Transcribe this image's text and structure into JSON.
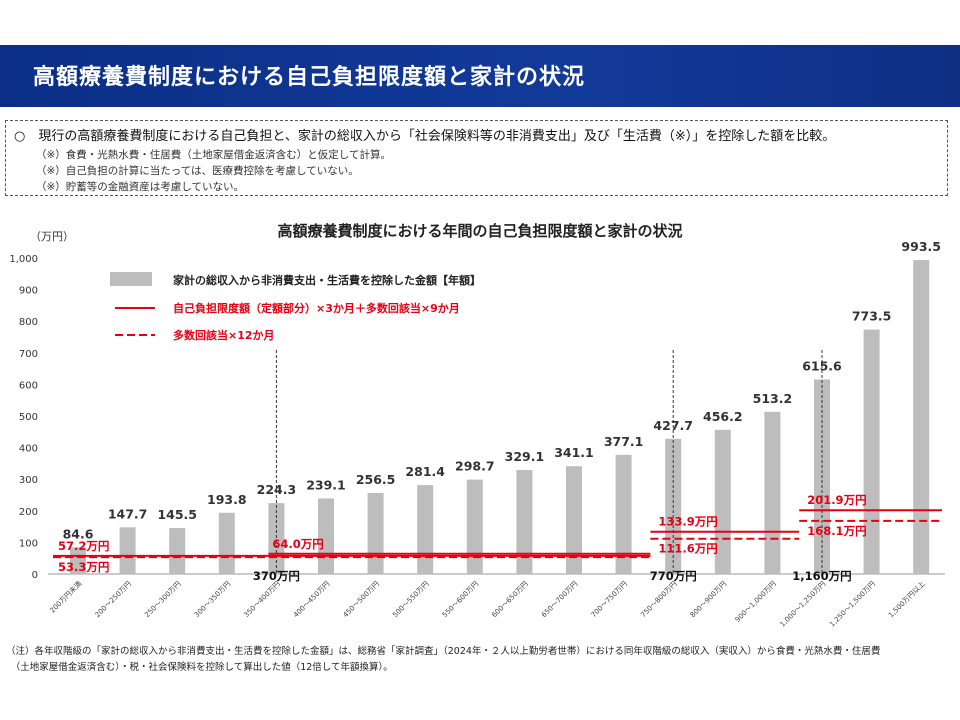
{
  "header": {
    "title": "高額療養費制度における自己負担限度額と家計の状況"
  },
  "note": {
    "main": "○　現行の高額療養費制度における自己負担と、家計の総収入から「社会保険料等の非消費支出」及び「生活費（※）」を控除した額を比較。",
    "sub": [
      "（※）食費・光熱水費・住居費（土地家屋借金返済含む）と仮定して計算。",
      "（※）自己負担の計算に当たっては、医療費控除を考慮していない。",
      "（※）貯蓄等の金融資産は考慮していない。"
    ]
  },
  "footnote": {
    "line1": "（注）各年収階級の「家計の総収入から非消費支出・生活費を控除した金額」は、総務省「家計調査」（2024年・２人以上勤労者世帯）における同年収階級の総収入（実収入）から食費・光熱水費・住居費",
    "line2": "　（土地家屋借金返済含む）・税・社会保険料を控除して算出した値（12倍して年額換算）。"
  },
  "colors": {
    "bar": "#bdbdbd",
    "red": "#e60012",
    "header_bg": "#0f3590",
    "text": "#222222"
  },
  "chart_data": {
    "type": "bar",
    "title": "高額療養費制度における年間の自己負担限度額と家計の状況",
    "ylabel": "（万円）",
    "ylim": [
      0,
      1000
    ],
    "yticks": [
      0,
      100,
      200,
      300,
      400,
      500,
      600,
      700,
      800,
      900,
      1000
    ],
    "ytick_labels": [
      "0",
      "100",
      "200",
      "300",
      "400",
      "500",
      "600",
      "700",
      "800",
      "900",
      "1,000"
    ],
    "categories": [
      "200万円未満",
      "200～250万円",
      "250～300万円",
      "300～350万円",
      "350～400万円",
      "400～450万円",
      "450～500万円",
      "500～550万円",
      "550～600万円",
      "600～650万円",
      "650～700万円",
      "700～750万円",
      "750～800万円",
      "800～900万円",
      "900～1,000万円",
      "1,000～1,250万円",
      "1,250～1,500万円",
      "1,500万円以上"
    ],
    "series": [
      {
        "name": "家計の総収入から非消費支出・生活費を控除した金額【年額】",
        "values": [
          84.6,
          147.7,
          145.5,
          193.8,
          224.3,
          239.1,
          256.5,
          281.4,
          298.7,
          329.1,
          341.1,
          377.1,
          427.7,
          456.2,
          513.2,
          615.6,
          773.5,
          993.5
        ],
        "labels": [
          "84.6",
          "147.7",
          "145.5",
          "193.8",
          "224.3",
          "239.1",
          "256.5",
          "281.4",
          "298.7",
          "329.1",
          "341.1",
          "377.1",
          "427.7",
          "456.2",
          "513.2",
          "615.6",
          "773.5",
          "993.5"
        ]
      }
    ],
    "legend": [
      {
        "label": "家計の総収入から非消費支出・生活費を控除した金額【年額】",
        "style": "bar"
      },
      {
        "label": "自己負担限度額（定額部分）×3か月＋多数回該当×9か月",
        "style": "solid"
      },
      {
        "label": "多数回該当×12か月",
        "style": "dashed"
      }
    ],
    "legend_position": "top-left",
    "limits": [
      {
        "name": "自己負担限度額（定額部分）×3か月＋多数回該当×9か月",
        "style": "solid",
        "from": 0,
        "to": 12,
        "value": 57.2,
        "label": "57.2万円"
      },
      {
        "name": "多数回該当×12か月",
        "style": "dashed",
        "from": 0,
        "to": 12,
        "value": 53.3,
        "label": "53.3万円"
      },
      {
        "name": "自己負担限度額（定額部分）×3か月＋多数回該当×9か月",
        "style": "solid",
        "from": 4,
        "to": 12,
        "value": 64.0,
        "label": "64.0万円"
      },
      {
        "name": "自己負担限度額（定額部分）×3か月＋多数回該当×9か月",
        "style": "solid",
        "from": 12,
        "to": 15,
        "value": 133.9,
        "label": "133.9万円"
      },
      {
        "name": "多数回該当×12か月",
        "style": "dashed",
        "from": 12,
        "to": 15,
        "value": 111.6,
        "label": "111.6万円"
      },
      {
        "name": "自己負担限度額（定額部分）×3か月＋多数回該当×9か月",
        "style": "solid",
        "from": 15,
        "to": 18,
        "value": 201.9,
        "label": "201.9万円"
      },
      {
        "name": "多数回該当×12か月",
        "style": "dashed",
        "from": 15,
        "to": 18,
        "value": 168.1,
        "label": "168.1万円"
      }
    ],
    "thresholds": [
      {
        "at": 4,
        "label": "370万円"
      },
      {
        "at": 12,
        "label": "770万円"
      },
      {
        "at": 15,
        "label": "1,160万円"
      }
    ]
  }
}
